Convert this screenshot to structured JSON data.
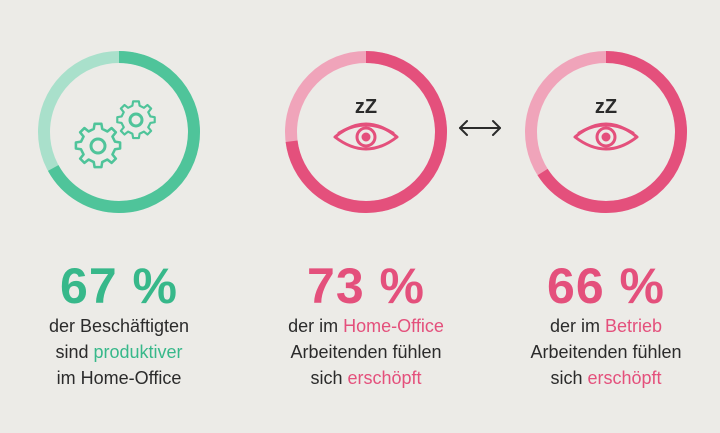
{
  "chart_data": [
    {
      "type": "donut",
      "value": 67,
      "value_label": "67 %",
      "description": {
        "line1": "der Beschäftigten",
        "line2_prefix": "sind ",
        "line2_highlight": "produktiver",
        "line3": "im Home-Office"
      },
      "icon": "gears-icon",
      "color": "#4fc49a",
      "color_light": "#a9e0cb"
    },
    {
      "type": "donut",
      "value": 73,
      "value_label": "73 %",
      "description": {
        "line1_prefix": "der im ",
        "line1_highlight": "Home-Office",
        "line2": "Arbeitenden fühlen",
        "line3_prefix": "sich ",
        "line3_highlight": "erschöpft"
      },
      "icon": "tired-eye-icon",
      "icon_text": "zZ",
      "color": "#e4507c",
      "color_light": "#f0a4ba"
    },
    {
      "type": "donut",
      "value": 66,
      "value_label": "66 %",
      "description": {
        "line1_prefix": "der im ",
        "line1_highlight": "Betrieb",
        "line2": "Arbeitenden fühlen",
        "line3_prefix": "sich ",
        "line3_highlight": "erschöpft"
      },
      "icon": "tired-eye-icon",
      "icon_text": "zZ",
      "color": "#e4507c",
      "color_light": "#f0a4ba"
    }
  ],
  "comparison_icon": "double-arrow-icon",
  "colors": {
    "background": "#ecebe7",
    "green_text": "#37b88a",
    "pink_text": "#e4507c"
  }
}
